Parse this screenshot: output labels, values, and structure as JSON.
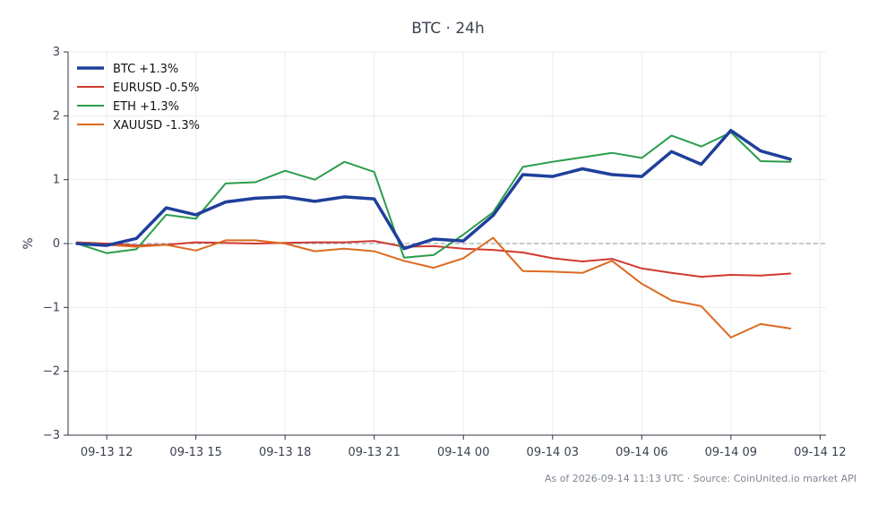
{
  "chart_data": {
    "type": "line",
    "title": "BTC · 24h",
    "xlabel": "",
    "ylabel": "%",
    "xlim": [
      10.7,
      36.2
    ],
    "ylim": [
      -3,
      3
    ],
    "yticks": [
      -3,
      -2,
      -1,
      0,
      1,
      2,
      3
    ],
    "ytick_labels": [
      "−3",
      "−2",
      "−1",
      "0",
      "1",
      "2",
      "3"
    ],
    "xticks": [
      12,
      15,
      18,
      21,
      24,
      27,
      30,
      33,
      36
    ],
    "xtick_labels": [
      "09-13 12",
      "09-13 15",
      "09-13 18",
      "09-13 21",
      "09-14 00",
      "09-14 03",
      "09-14 06",
      "09-14 09",
      "09-14 12"
    ],
    "grid": true,
    "zero_line": true,
    "legend_position": "top-left",
    "x": [
      11,
      12,
      13,
      14,
      15,
      16,
      17,
      18,
      19,
      20,
      21,
      22,
      23,
      24,
      25,
      26,
      27,
      28,
      29,
      30,
      31,
      32,
      33,
      34,
      35
    ],
    "series": [
      {
        "name": "BTC +1.3%",
        "color": "#1f3f9b",
        "width": 3.5,
        "values": [
          0.0,
          -0.03,
          0.08,
          0.56,
          0.45,
          0.65,
          0.71,
          0.73,
          0.66,
          0.73,
          0.7,
          -0.08,
          0.07,
          0.04,
          0.44,
          1.08,
          1.05,
          1.17,
          1.08,
          1.05,
          1.44,
          1.24,
          1.77,
          1.45,
          1.32
        ]
      },
      {
        "name": "EURUSD -0.5%",
        "color": "#d03a2f",
        "width": 2,
        "values": [
          0.02,
          0.0,
          -0.03,
          -0.02,
          0.02,
          0.01,
          0.0,
          0.01,
          0.02,
          0.02,
          0.04,
          -0.05,
          -0.04,
          -0.08,
          -0.1,
          -0.14,
          -0.23,
          -0.28,
          -0.24,
          -0.39,
          -0.46,
          -0.52,
          -0.49,
          -0.5,
          -0.47
        ]
      },
      {
        "name": "ETH +1.3%",
        "color": "#2a9d4b",
        "width": 2,
        "values": [
          0.0,
          -0.15,
          -0.09,
          0.45,
          0.39,
          0.94,
          0.96,
          1.14,
          1.0,
          1.28,
          1.12,
          -0.22,
          -0.18,
          0.14,
          0.49,
          1.2,
          1.28,
          1.35,
          1.42,
          1.34,
          1.69,
          1.52,
          1.74,
          1.29,
          1.28
        ]
      },
      {
        "name": "XAUUSD -1.3%",
        "color": "#dd6a20",
        "width": 2,
        "values": [
          0.02,
          -0.02,
          -0.05,
          -0.02,
          -0.11,
          0.05,
          0.05,
          0.0,
          -0.12,
          -0.08,
          -0.12,
          -0.27,
          -0.38,
          -0.23,
          0.09,
          -0.43,
          -0.44,
          -0.46,
          -0.27,
          -0.63,
          -0.89,
          -0.98,
          -1.47,
          -1.26,
          -1.33
        ]
      }
    ],
    "footer": "As of 2026-09-14 11:13 UTC · Source: CoinUnited.io market API"
  }
}
